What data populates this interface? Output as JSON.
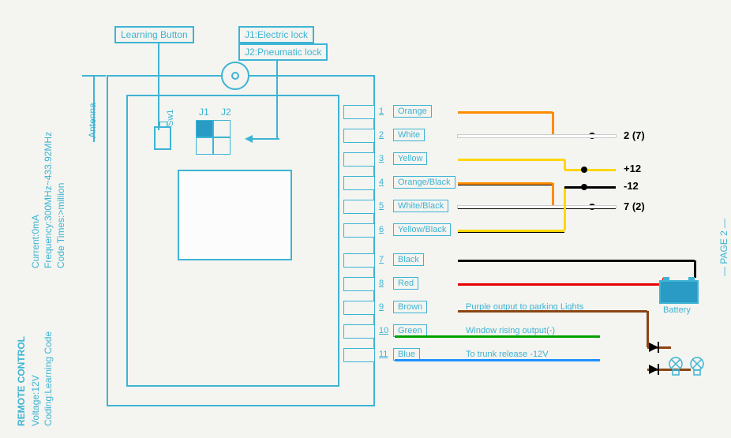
{
  "title": "REMOTE CONTROL",
  "specs": {
    "voltage": "Voltage:12V",
    "coding": "Coding:Learning Code",
    "current": "Current:0mA",
    "frequency": "Frequency:300MHz~433.92MHz",
    "code_times": "Code Times:>million"
  },
  "antenna_label": "Antenna",
  "learning_button": "Learning Button",
  "j1_label": "J1:Electric lock",
  "j2_label": "J2:Pneumatic lock",
  "sw1": "Sw1",
  "j1": "J1",
  "j2": "J2",
  "page": "— PAGE 2 —",
  "pins": [
    {
      "n": "1",
      "label": "Orange",
      "color": "#ff8c00",
      "end": "",
      "desc": ""
    },
    {
      "n": "2",
      "label": "White",
      "color": "#ffffff",
      "end": "2 (7)",
      "desc": ""
    },
    {
      "n": "3",
      "label": "Yellow",
      "color": "#ffd700",
      "end": "+12",
      "desc": ""
    },
    {
      "n": "4",
      "label": "Orange/Black",
      "color": "#ff8c00",
      "end": "-12",
      "desc": ""
    },
    {
      "n": "5",
      "label": "White/Black",
      "color": "#ffffff",
      "end": "7 (2)",
      "desc": ""
    },
    {
      "n": "6",
      "label": "Yellow/Black",
      "color": "#ffd700",
      "end": "",
      "desc": ""
    },
    {
      "n": "7",
      "label": "Black",
      "color": "#000000",
      "end": "",
      "desc": ""
    },
    {
      "n": "8",
      "label": "Red",
      "color": "#e60000",
      "end": "",
      "desc": ""
    },
    {
      "n": "9",
      "label": "Brown",
      "color": "#8b4513",
      "end": "",
      "desc": "Purple output to parking Lights"
    },
    {
      "n": "10",
      "label": "Green",
      "color": "#00a000",
      "end": "",
      "desc": "Window rising output(-)"
    },
    {
      "n": "11",
      "label": "Blue",
      "color": "#1e90ff",
      "end": "",
      "desc": "To trunk release -12V"
    }
  ],
  "battery": "Battery",
  "colors": {
    "primary": "#3db4d4",
    "jumper_fill": "#2a9bc4"
  }
}
